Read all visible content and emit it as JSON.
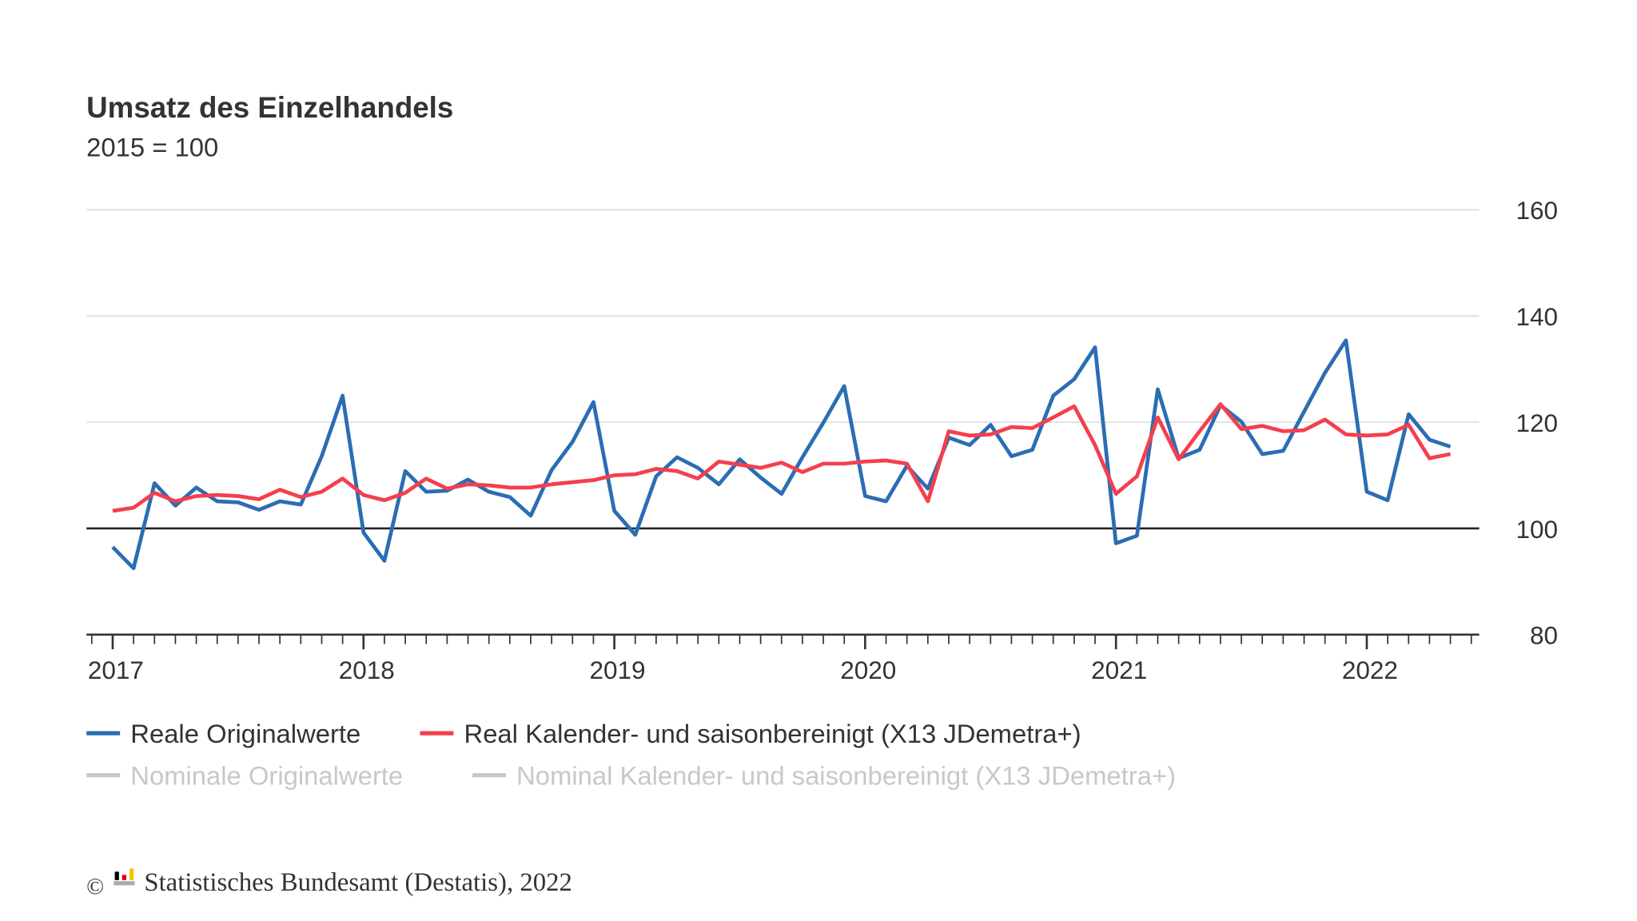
{
  "chart_data": {
    "type": "line",
    "title": "Umsatz des Einzelhandels",
    "subtitle": "2015 = 100",
    "x_start": "2017-01",
    "x_frequency": "monthly",
    "x_tick_labels": [
      "2017",
      "2018",
      "2019",
      "2020",
      "2021",
      "2022"
    ],
    "y_tick_labels": [
      "160",
      "140",
      "120",
      "100",
      "80"
    ],
    "y_ticks": [
      160,
      140,
      120,
      100,
      80
    ],
    "ylim": [
      80,
      160
    ],
    "reference_line": 100,
    "grid": true,
    "y_axis_side": "right",
    "legend_placement": "bottom",
    "series": [
      {
        "name": "Reale Originalwerte",
        "color": "#2b6db3",
        "visible": true,
        "values": [
          96.5,
          92.5,
          108.5,
          104.3,
          107.7,
          105.1,
          104.9,
          103.5,
          105.1,
          104.5,
          113.6,
          125.0,
          99.2,
          93.9,
          110.8,
          106.9,
          107.1,
          109.2,
          106.9,
          105.9,
          102.4,
          111.0,
          116.3,
          123.8,
          103.3,
          98.8,
          109.8,
          113.4,
          111.4,
          108.3,
          113.0,
          109.6,
          106.5,
          113.4,
          119.9,
          126.8,
          106.1,
          105.1,
          111.8,
          107.5,
          117.1,
          115.7,
          119.5,
          113.6,
          114.8,
          125.0,
          128.1,
          134.1,
          97.2,
          98.6,
          126.2,
          113.2,
          114.8,
          123.2,
          120.1,
          114.0,
          114.6,
          122.0,
          129.3,
          135.4,
          106.9,
          105.3,
          121.5,
          116.7,
          115.4
        ]
      },
      {
        "name": "Real Kalender- und saisonbereinigt (X13 JDemetra+)",
        "color": "#f43f4d",
        "visible": true,
        "values": [
          103.3,
          103.9,
          106.7,
          105.1,
          106.1,
          106.3,
          106.1,
          105.5,
          107.3,
          105.9,
          106.9,
          109.4,
          106.3,
          105.3,
          106.7,
          109.4,
          107.5,
          108.3,
          108.1,
          107.7,
          107.7,
          108.3,
          108.7,
          109.1,
          110.0,
          110.2,
          111.2,
          110.8,
          109.4,
          112.6,
          112.0,
          111.4,
          112.4,
          110.6,
          112.2,
          112.2,
          112.6,
          112.8,
          112.2,
          105.1,
          118.3,
          117.5,
          117.7,
          119.1,
          118.9,
          120.9,
          123.0,
          115.7,
          106.5,
          109.8,
          120.9,
          113.0,
          118.3,
          123.4,
          118.7,
          119.3,
          118.3,
          118.5,
          120.5,
          117.7,
          117.5,
          117.7,
          119.5,
          113.2,
          114.0
        ]
      },
      {
        "name": "Nominale Originalwerte",
        "color": "#cccccc",
        "visible": false,
        "values": []
      },
      {
        "name": "Nominal Kalender- und saisonbereinigt (X13 JDemetra+)",
        "color": "#cccccc",
        "visible": false,
        "values": []
      }
    ]
  },
  "footer": {
    "copyright": "©",
    "source": "Statistisches Bundesamt (Destatis), 2022"
  },
  "colors": {
    "grid": "#d9d9d9",
    "axis": "#333333",
    "text": "#333333",
    "inactive": "#c8c8c8"
  }
}
